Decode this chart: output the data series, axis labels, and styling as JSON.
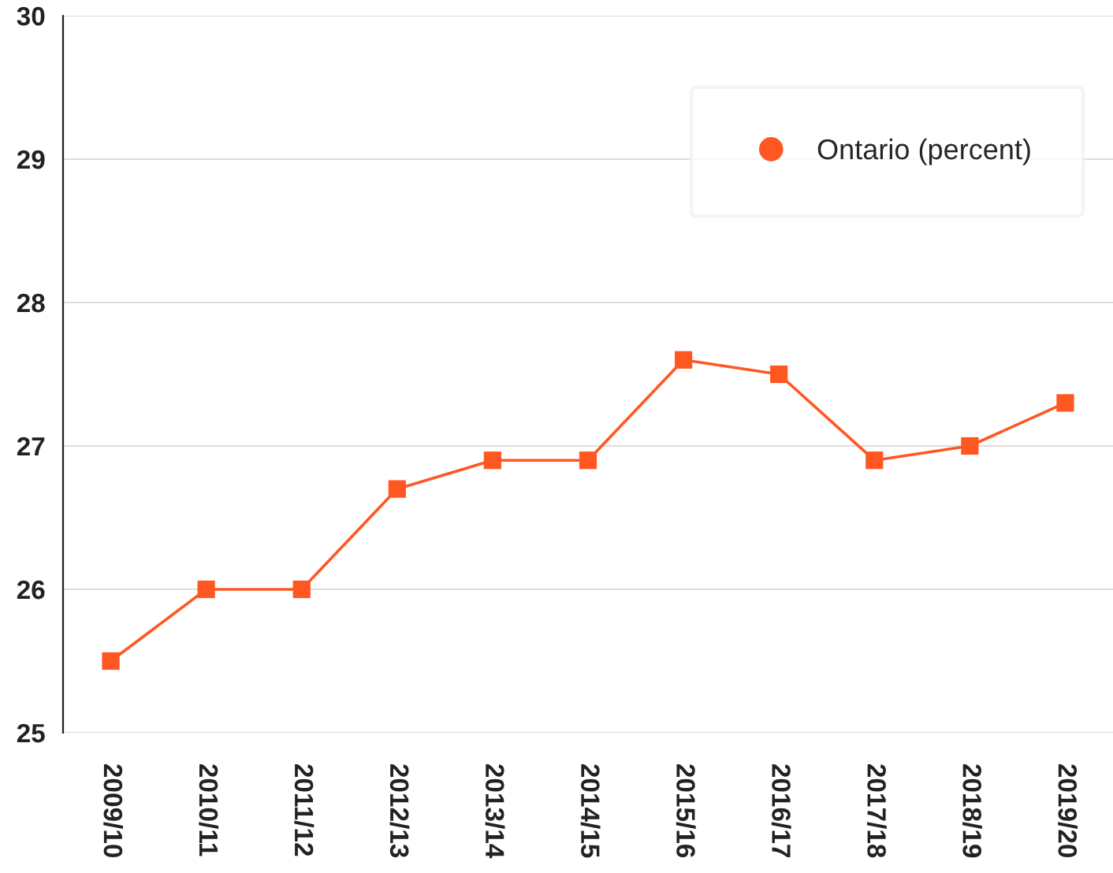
{
  "chart_data": {
    "type": "line",
    "categories": [
      "2009/10",
      "2010/11",
      "2011/12",
      "2012/13",
      "2013/14",
      "2014/15",
      "2015/16",
      "2016/17",
      "2017/18",
      "2018/19",
      "2019/20"
    ],
    "series": [
      {
        "name": "Ontario (percent)",
        "color": "#ff5722",
        "values": [
          25.5,
          26.0,
          26.0,
          26.7,
          26.9,
          26.9,
          27.6,
          27.5,
          26.9,
          27.0,
          27.3
        ]
      }
    ],
    "ylim": [
      25,
      30
    ],
    "yticks": [
      25,
      26,
      27,
      28,
      29,
      30
    ],
    "grid": "y",
    "legend": "top right",
    "marker": "square",
    "line_style": "solid"
  }
}
